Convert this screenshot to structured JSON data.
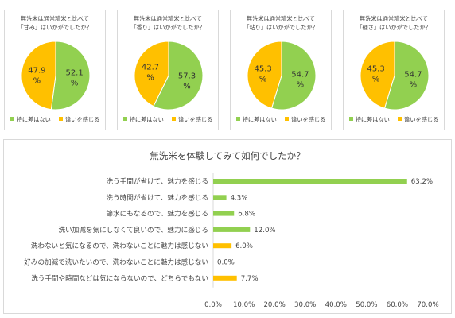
{
  "colors": {
    "green": "#92d050",
    "yellow": "#ffc000",
    "border": "#d9d9d9",
    "axis": "#d9d9d9"
  },
  "pies": [
    {
      "title_lines": [
        "無洗米は通常精米と比べて",
        "「甘み」はいかがでしたか？"
      ],
      "legend": [
        "特に差はない",
        "違いを感じる"
      ],
      "slices": [
        {
          "label": "特に差はない",
          "value": 52.1,
          "text": "52.1",
          "unit": "%"
        },
        {
          "label": "違いを感じる",
          "value": 47.9,
          "text": "47.9",
          "unit": "%"
        }
      ]
    },
    {
      "title_lines": [
        "無洗米は通常精米と比べて",
        "「香り」はいかがでしたか？"
      ],
      "legend": [
        "特に差はない",
        "違いを感じる"
      ],
      "slices": [
        {
          "label": "特に差はない",
          "value": 57.3,
          "text": "57.3",
          "unit": "%"
        },
        {
          "label": "違いを感じる",
          "value": 42.7,
          "text": "42.7",
          "unit": "%"
        }
      ]
    },
    {
      "title_lines": [
        "無洗米は通常精米と比べて",
        "「粘り」はいかがでしたか？"
      ],
      "legend": [
        "特に差はない",
        "違いを感じる"
      ],
      "slices": [
        {
          "label": "特に差はない",
          "value": 54.7,
          "text": "54.7",
          "unit": "%"
        },
        {
          "label": "違いを感じる",
          "value": 45.3,
          "text": "45.3",
          "unit": "%"
        }
      ]
    },
    {
      "title_lines": [
        "無洗米は通常精米と比べて",
        "「硬さ」はいかがでしたか？"
      ],
      "legend": [
        "特に差はない",
        "違いを感じる"
      ],
      "slices": [
        {
          "label": "特に差はない",
          "value": 54.7,
          "text": "54.7",
          "unit": "%"
        },
        {
          "label": "違いを感じる",
          "value": 45.3,
          "text": "45.3",
          "unit": "%"
        }
      ]
    }
  ],
  "bar": {
    "title": "無洗米を体験してみて如何でしたか？"
  },
  "chart_data": [
    {
      "type": "pie",
      "title": "無洗米は通常精米と比べて「甘み」はいかがでしたか？",
      "categories": [
        "特に差はない",
        "違いを感じる"
      ],
      "values": [
        52.1,
        47.9
      ]
    },
    {
      "type": "pie",
      "title": "無洗米は通常精米と比べて「香り」はいかがでしたか？",
      "categories": [
        "特に差はない",
        "違いを感じる"
      ],
      "values": [
        57.3,
        42.7
      ]
    },
    {
      "type": "pie",
      "title": "無洗米は通常精米と比べて「粘り」はいかがでしたか？",
      "categories": [
        "特に差はない",
        "違いを感じる"
      ],
      "values": [
        54.7,
        45.3
      ]
    },
    {
      "type": "pie",
      "title": "無洗米は通常精米と比べて「硬さ」はいかがでしたか？",
      "categories": [
        "特に差はない",
        "違いを感じる"
      ],
      "values": [
        54.7,
        45.3
      ]
    },
    {
      "type": "bar",
      "orientation": "horizontal",
      "title": "無洗米を体験してみて如何でしたか？",
      "categories": [
        "洗う手間が省けて、魅力を感じる",
        "洗う時間が省けて、魅力を感じる",
        "節水にもなるので、魅力を感じる",
        "洗い加減を気にしなくて良いので、魅力に感じる",
        "洗わないと気になるので、洗わないことに魅力は感じない",
        "好みの加減で洗いたいので、洗わないことに魅力は感じない",
        "洗う手間や時間などは気にならないので、どちらでもない"
      ],
      "values": [
        63.2,
        4.3,
        6.8,
        12.0,
        6.0,
        0.0,
        7.7
      ],
      "value_labels": [
        "63.2%",
        "4.3%",
        "6.8%",
        "12.0%",
        "6.0%",
        "0.0%",
        "7.7%"
      ],
      "bar_colors": [
        "#92d050",
        "#92d050",
        "#92d050",
        "#92d050",
        "#ffc000",
        "#ffc000",
        "#ffc000"
      ],
      "xlim": [
        0,
        70
      ],
      "x_ticks": [
        0,
        10,
        20,
        30,
        40,
        50,
        60,
        70
      ],
      "x_tick_labels": [
        "0.0%",
        "10.0%",
        "20.0%",
        "30.0%",
        "40.0%",
        "50.0%",
        "60.0%",
        "70.0%"
      ],
      "grid": false
    }
  ]
}
